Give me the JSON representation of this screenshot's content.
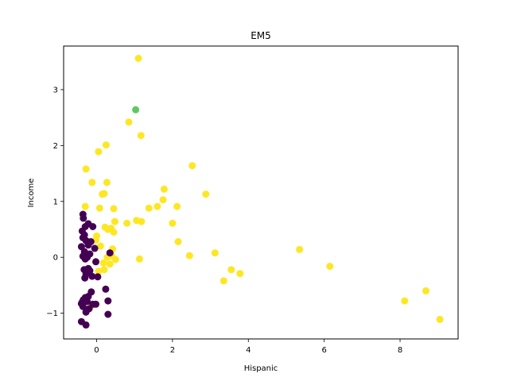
{
  "chart_data": {
    "type": "scatter",
    "title": "EM5",
    "xlabel": "Hispanic",
    "ylabel": "Income",
    "xlim": [
      -0.87,
      9.53
    ],
    "ylim": [
      -1.46,
      3.78
    ],
    "xticks": [
      0,
      2,
      4,
      6,
      8
    ],
    "yticks": [
      -1,
      0,
      1,
      2,
      3
    ],
    "tick_labels_x": [
      "0",
      "2",
      "4",
      "6",
      "8"
    ],
    "tick_labels_y": [
      "−1",
      "0",
      "1",
      "2",
      "3"
    ],
    "grid": false,
    "colors": {
      "cluster_0": "#440154",
      "cluster_1": "#5ec962",
      "cluster_2": "#fde725"
    },
    "series": [
      {
        "cluster": 2,
        "color": "#fde725",
        "points": [
          [
            1.1,
            3.56
          ],
          [
            0.85,
            2.42
          ],
          [
            1.17,
            2.18
          ],
          [
            0.25,
            2.01
          ],
          [
            0.05,
            1.89
          ],
          [
            -0.28,
            1.58
          ],
          [
            2.52,
            1.64
          ],
          [
            -0.12,
            1.34
          ],
          [
            0.27,
            1.34
          ],
          [
            1.78,
            1.22
          ],
          [
            0.2,
            1.14
          ],
          [
            0.15,
            1.13
          ],
          [
            2.88,
            1.13
          ],
          [
            1.75,
            1.03
          ],
          [
            -0.3,
            0.91
          ],
          [
            0.08,
            0.88
          ],
          [
            0.45,
            0.87
          ],
          [
            1.38,
            0.88
          ],
          [
            1.6,
            0.91
          ],
          [
            2.12,
            0.91
          ],
          [
            0.48,
            0.64
          ],
          [
            0.8,
            0.61
          ],
          [
            1.05,
            0.66
          ],
          [
            1.18,
            0.64
          ],
          [
            2.0,
            0.61
          ],
          [
            0.22,
            0.54
          ],
          [
            0.3,
            0.5
          ],
          [
            0.38,
            0.52
          ],
          [
            0.45,
            0.45
          ],
          [
            0.0,
            0.38
          ],
          [
            -0.02,
            0.31
          ],
          [
            2.15,
            0.28
          ],
          [
            0.1,
            0.2
          ],
          [
            0.42,
            0.15
          ],
          [
            3.12,
            0.08
          ],
          [
            0.4,
            0.02
          ],
          [
            0.28,
            0.0
          ],
          [
            0.5,
            -0.04
          ],
          [
            1.13,
            -0.03
          ],
          [
            2.45,
            0.03
          ],
          [
            5.35,
            0.14
          ],
          [
            0.18,
            -0.1
          ],
          [
            0.35,
            -0.12
          ],
          [
            0.05,
            -0.25
          ],
          [
            0.2,
            -0.22
          ],
          [
            3.55,
            -0.22
          ],
          [
            3.78,
            -0.29
          ],
          [
            3.35,
            -0.42
          ],
          [
            6.15,
            -0.16
          ],
          [
            -0.15,
            -0.88
          ],
          [
            8.12,
            -0.78
          ],
          [
            8.68,
            -0.6
          ],
          [
            9.05,
            -1.11
          ]
        ]
      },
      {
        "cluster": 1,
        "color": "#5ec962",
        "points": [
          [
            1.03,
            2.64
          ]
        ]
      },
      {
        "cluster": 0,
        "color": "#440154",
        "points": [
          [
            -0.36,
            0.77
          ],
          [
            -0.35,
            0.7
          ],
          [
            -0.22,
            0.6
          ],
          [
            -0.3,
            0.55
          ],
          [
            -0.1,
            0.55
          ],
          [
            -0.38,
            0.47
          ],
          [
            -0.32,
            0.4
          ],
          [
            -0.36,
            0.35
          ],
          [
            -0.28,
            0.3
          ],
          [
            -0.15,
            0.28
          ],
          [
            -0.22,
            0.22
          ],
          [
            -0.4,
            0.19
          ],
          [
            -0.05,
            0.16
          ],
          [
            -0.32,
            0.1
          ],
          [
            -0.18,
            0.06
          ],
          [
            -0.36,
            0.02
          ],
          [
            -0.25,
            0.0
          ],
          [
            -0.3,
            -0.03
          ],
          [
            0.35,
            0.08
          ],
          [
            -0.02,
            -0.08
          ],
          [
            -0.22,
            -0.2
          ],
          [
            -0.33,
            -0.22
          ],
          [
            -0.18,
            -0.24
          ],
          [
            -0.28,
            -0.3
          ],
          [
            -0.12,
            -0.34
          ],
          [
            0.03,
            -0.35
          ],
          [
            -0.31,
            -0.37
          ],
          [
            0.24,
            -0.57
          ],
          [
            -0.14,
            -0.62
          ],
          [
            -0.3,
            -0.72
          ],
          [
            -0.22,
            -0.7
          ],
          [
            -0.35,
            -0.76
          ],
          [
            -0.38,
            -0.8
          ],
          [
            -0.4,
            -0.83
          ],
          [
            -0.25,
            -0.79
          ],
          [
            -0.1,
            -0.84
          ],
          [
            -0.02,
            -0.84
          ],
          [
            0.3,
            -0.78
          ],
          [
            -0.36,
            -0.88
          ],
          [
            -0.2,
            -0.92
          ],
          [
            -0.28,
            -0.98
          ],
          [
            0.3,
            -1.02
          ],
          [
            -0.4,
            -1.15
          ],
          [
            -0.28,
            -1.21
          ]
        ]
      }
    ]
  }
}
